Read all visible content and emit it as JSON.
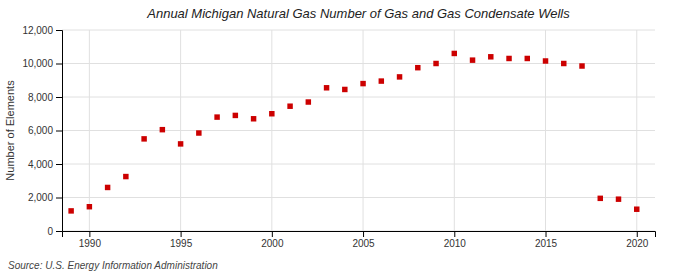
{
  "chart_data": {
    "type": "scatter",
    "title": "Annual Michigan Natural Gas Number of Gas and Gas Condensate Wells",
    "ylabel": "Number of Elements",
    "annotations": [
      "Source: U.S. Energy Information Administration"
    ],
    "color": "#cc0000",
    "marker": "square",
    "grid": true,
    "x": [
      1989,
      1990,
      1991,
      1992,
      1993,
      1994,
      1995,
      1996,
      1997,
      1998,
      1999,
      2000,
      2001,
      2002,
      2003,
      2004,
      2005,
      2006,
      2007,
      2008,
      2009,
      2010,
      2011,
      2012,
      2013,
      2014,
      2015,
      2016,
      2017,
      2018,
      2019,
      2020
    ],
    "values": [
      1200,
      1450,
      2600,
      3250,
      5500,
      6050,
      5200,
      5850,
      6800,
      6900,
      6700,
      7000,
      7450,
      7700,
      8550,
      8450,
      8800,
      8950,
      9200,
      9750,
      10000,
      10600,
      10200,
      10400,
      10300,
      10300,
      10150,
      10000,
      9850,
      1950,
      1900,
      1300
    ],
    "xlim": [
      1988.5,
      2021
    ],
    "ylim": [
      0,
      12000
    ],
    "xticks": [
      1990,
      1995,
      2000,
      2005,
      2010,
      2015,
      2020
    ],
    "yticks": [
      0,
      {
        "value": 2000,
        "label": "2,000"
      },
      {
        "value": 4000,
        "label": "4,000"
      },
      {
        "value": 6000,
        "label": "6,000"
      },
      {
        "value": 8000,
        "label": "8,000"
      },
      {
        "value": 10000,
        "label": "10,000"
      },
      {
        "value": 12000,
        "label": "12,000"
      }
    ]
  }
}
